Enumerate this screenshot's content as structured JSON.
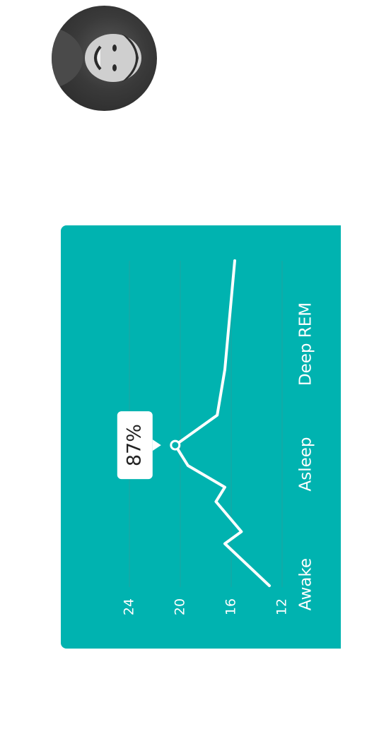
{
  "profile": {
    "avatar_icon": "user-photo-icon"
  },
  "chart_data": {
    "type": "line",
    "orientation": "rotated-90-clockwise",
    "categories": [
      "Awake",
      "Asleep",
      "Deep REM"
    ],
    "y_ticks": [
      12,
      16,
      20,
      24
    ],
    "ylim": [
      12,
      24
    ],
    "grid": true,
    "series": [
      {
        "values": [
          {
            "x": 0.0,
            "y": 13.0
          },
          {
            "x": 0.35,
            "y": 16.5
          },
          {
            "x": 0.45,
            "y": 15.2
          },
          {
            "x": 0.7,
            "y": 17.2
          },
          {
            "x": 0.82,
            "y": 16.5
          },
          {
            "x": 1.0,
            "y": 19.4
          },
          {
            "x": 1.17,
            "y": 20.4
          },
          {
            "x": 1.42,
            "y": 17.1
          },
          {
            "x": 1.8,
            "y": 16.5
          }
        ]
      }
    ],
    "highlight": {
      "x": 1.17,
      "y": 20.4,
      "label": "87%"
    },
    "colors": {
      "background": "#00b3b0",
      "line": "#ffffff",
      "grid": "#1aa6a3",
      "tooltip_bg": "#ffffff",
      "tooltip_text": "#222222"
    }
  }
}
